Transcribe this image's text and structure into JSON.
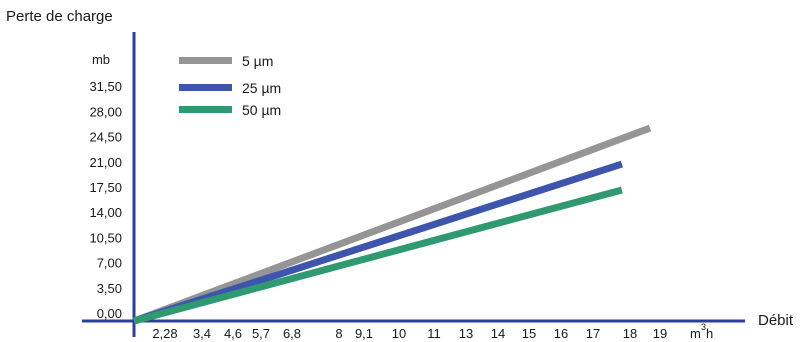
{
  "chart_data": {
    "type": "line",
    "title": "",
    "ylabel": "Perte de charge",
    "xlabel": "Débit",
    "y_unit": "mb",
    "x_unit": "m³h",
    "x_unit_parts": [
      "m",
      "3",
      "h"
    ],
    "ylim": [
      0,
      35
    ],
    "y_ticks": [
      "0,00",
      "3,50",
      "7,00",
      "10,50",
      "14,00",
      "17,50",
      "21,00",
      "24,50",
      "28,00",
      "31,50"
    ],
    "y_tick_values": [
      0,
      3.5,
      7,
      10.5,
      14,
      17.5,
      21,
      24.5,
      28,
      31.5
    ],
    "x_ticks": [
      "2,28",
      "3,4",
      "4,6",
      "5,7",
      "6,8",
      "8",
      "9,1",
      "10",
      "11",
      "13",
      "14",
      "15",
      "16",
      "17",
      "18",
      "19"
    ],
    "legend_position": "top-left",
    "grid": false,
    "series": [
      {
        "name": "5 µm",
        "color": "#959595",
        "x": [
          0,
          18
        ],
        "y": [
          0,
          26.8
        ]
      },
      {
        "name": "25 µm",
        "color": "#3d55ad",
        "x": [
          0,
          17
        ],
        "y": [
          0,
          21.8
        ]
      },
      {
        "name": "50 µm",
        "color": "#2f9a6f",
        "x": [
          0,
          17
        ],
        "y": [
          0,
          18.2
        ]
      }
    ],
    "axis_color": "#2b3e9e"
  }
}
